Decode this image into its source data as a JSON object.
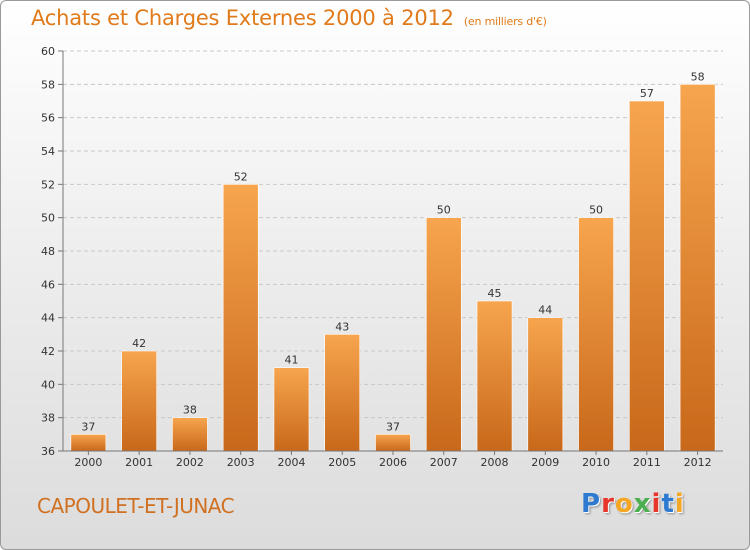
{
  "header": {
    "title": "Achats et Charges Externes 2000 à 2012",
    "subtitle": "(en milliers d'€)"
  },
  "footer": {
    "commune": "CAPOULET-ET-JUNAC",
    "logo": {
      "letters": [
        "P",
        "r",
        "o",
        "x",
        "i",
        "t",
        "i"
      ],
      "colors": [
        "#2e7ad1",
        "#e8352b",
        "#f5a623",
        "#4caf50",
        "#e8352b",
        "#2e7ad1",
        "#f5a623"
      ]
    }
  },
  "colors": {
    "accent": "#e07a1a",
    "bar_top": "#f7a54e",
    "bar_bottom": "#c8681a",
    "grid": "#c8c8c8",
    "axis": "#777777"
  },
  "chart_data": {
    "type": "bar",
    "categories": [
      "2000",
      "2001",
      "2002",
      "2003",
      "2004",
      "2005",
      "2006",
      "2007",
      "2008",
      "2009",
      "2010",
      "2011",
      "2012"
    ],
    "values": [
      37,
      42,
      38,
      52,
      41,
      43,
      37,
      50,
      45,
      44,
      50,
      57,
      58
    ],
    "title": "Achats et Charges Externes 2000 à 2012",
    "subtitle": "(en milliers d'€)",
    "xlabel": "",
    "ylabel": "",
    "ylim": [
      36,
      60
    ],
    "yticks": [
      36,
      38,
      40,
      42,
      44,
      46,
      48,
      50,
      52,
      54,
      56,
      58,
      60
    ],
    "grid": true,
    "legend": "none"
  }
}
